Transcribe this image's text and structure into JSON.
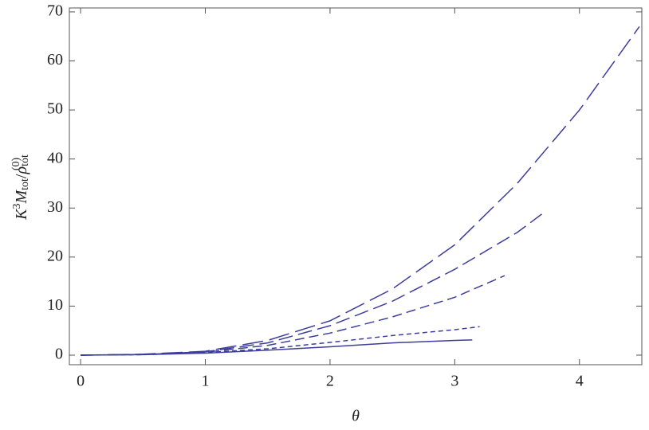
{
  "chart_data": {
    "type": "line",
    "xlabel": "θ",
    "ylabel": [
      {
        "text": "K",
        "style": "italic"
      },
      {
        "text": "3",
        "shift": "sup"
      },
      {
        "text": "M",
        "style": "italic"
      },
      {
        "text": "tot",
        "shift": "sub"
      },
      {
        "text": "/"
      },
      {
        "text": "ρ",
        "style": "italic"
      },
      {
        "text": "tot",
        "shift": "sub"
      },
      {
        "text": "(0)",
        "shift": "supover"
      }
    ],
    "xlim": [
      -0.09,
      4.5
    ],
    "ylim": [
      -1.95,
      70.8
    ],
    "xticks": [
      0,
      1,
      2,
      3,
      4
    ],
    "yticks": [
      0,
      10,
      20,
      30,
      40,
      50,
      60,
      70
    ],
    "series": [
      {
        "color": "#3d3d9c",
        "dash": "none",
        "x": [
          0,
          0.5,
          1,
          1.5,
          2,
          2.5,
          3,
          3.14
        ],
        "values": [
          0,
          0.1,
          0.4,
          1.0,
          1.7,
          2.5,
          3.0,
          3.1
        ]
      },
      {
        "color": "#3d3d9c",
        "dash": "6 4",
        "x": [
          0,
          0.5,
          1,
          1.5,
          2,
          2.5,
          3,
          3.2
        ],
        "values": [
          0,
          0.1,
          0.5,
          1.3,
          2.6,
          4.0,
          5.2,
          5.8
        ]
      },
      {
        "color": "#3d3d9c",
        "dash": "12 6",
        "x": [
          0,
          0.5,
          1,
          1.5,
          2,
          2.5,
          3,
          3.4
        ],
        "values": [
          0,
          0.15,
          0.6,
          2.0,
          4.5,
          7.8,
          11.8,
          16.2
        ]
      },
      {
        "color": "#3d3d9c",
        "dash": "18 7",
        "x": [
          0,
          0.5,
          1,
          1.5,
          2,
          2.5,
          3,
          3.5,
          3.7
        ],
        "values": [
          0,
          0.15,
          0.7,
          2.5,
          6.0,
          11,
          17.5,
          25,
          28.8
        ]
      },
      {
        "color": "#3d3d9c",
        "dash": "26 8",
        "x": [
          0,
          0.5,
          1,
          1.5,
          2,
          2.5,
          3,
          3.5,
          4,
          4.48
        ],
        "values": [
          0,
          0.2,
          0.8,
          3.0,
          7.0,
          13.5,
          22.5,
          35,
          50,
          67
        ]
      }
    ]
  }
}
